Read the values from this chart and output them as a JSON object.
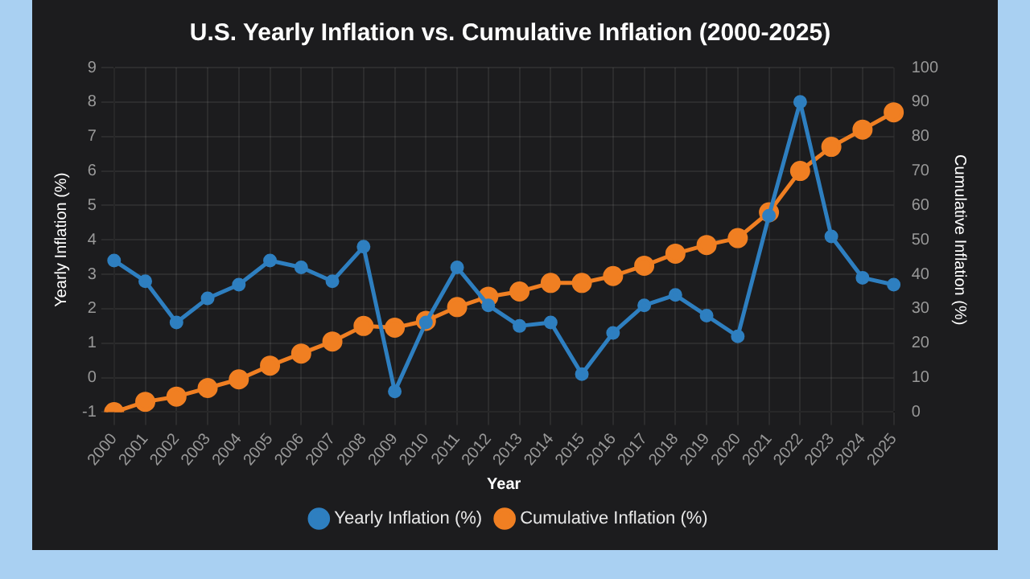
{
  "chart_data": {
    "type": "line",
    "title": "U.S. Yearly Inflation vs. Cumulative Inflation (2000-2025)",
    "xlabel": "Year",
    "ylabel": "Yearly Inflation (%)",
    "y2label": "Cumulative Inflation (%)",
    "categories": [
      "2000",
      "2001",
      "2002",
      "2003",
      "2004",
      "2005",
      "2006",
      "2007",
      "2008",
      "2009",
      "2010",
      "2011",
      "2012",
      "2013",
      "2014",
      "2015",
      "2016",
      "2017",
      "2018",
      "2019",
      "2020",
      "2021",
      "2022",
      "2023",
      "2024",
      "2025"
    ],
    "series": [
      {
        "name": "Yearly Inflation (%)",
        "color": "#2e7fc0",
        "values": [
          3.4,
          2.8,
          1.6,
          2.3,
          2.7,
          3.4,
          3.2,
          2.8,
          3.8,
          -0.4,
          1.6,
          3.2,
          2.1,
          1.5,
          1.6,
          0.1,
          1.3,
          2.1,
          2.4,
          1.8,
          1.2,
          4.7,
          8.0,
          4.1,
          2.9,
          2.7
        ]
      },
      {
        "name": "Cumulative Inflation (%)",
        "color": "#f07f22",
        "axis": "y2",
        "values": [
          0,
          3,
          4.5,
          7,
          9.5,
          13.5,
          17,
          20.5,
          25,
          24.5,
          26.5,
          30.5,
          33.5,
          35,
          37.5,
          37.5,
          39.5,
          42.5,
          46,
          48.5,
          50.5,
          58,
          70,
          77,
          82,
          87
        ]
      }
    ],
    "ylim": [
      -1,
      9
    ],
    "yticks": [
      -1,
      0,
      1,
      2,
      3,
      4,
      5,
      6,
      7,
      8,
      9
    ],
    "y2lim": [
      0,
      100
    ],
    "y2ticks": [
      0,
      10,
      20,
      30,
      40,
      50,
      60,
      70,
      80,
      90,
      100
    ],
    "grid": true,
    "legend": "bottom",
    "marker": "circle",
    "line_style": "solid"
  }
}
